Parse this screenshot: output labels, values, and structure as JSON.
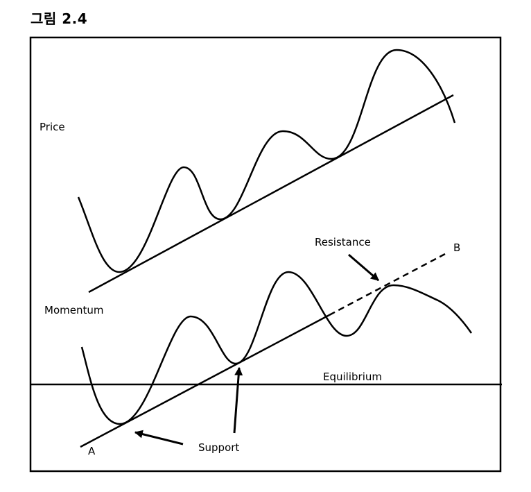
{
  "figure": {
    "title": "그림 2.4"
  },
  "labels": {
    "price": "Price",
    "momentum": "Momentum",
    "resistance": "Resistance",
    "equilibrium": "Equilibrium",
    "support": "Support",
    "point_a": "A",
    "point_b": "B"
  },
  "colors": {
    "ink": "#000000",
    "background": "#ffffff"
  }
}
